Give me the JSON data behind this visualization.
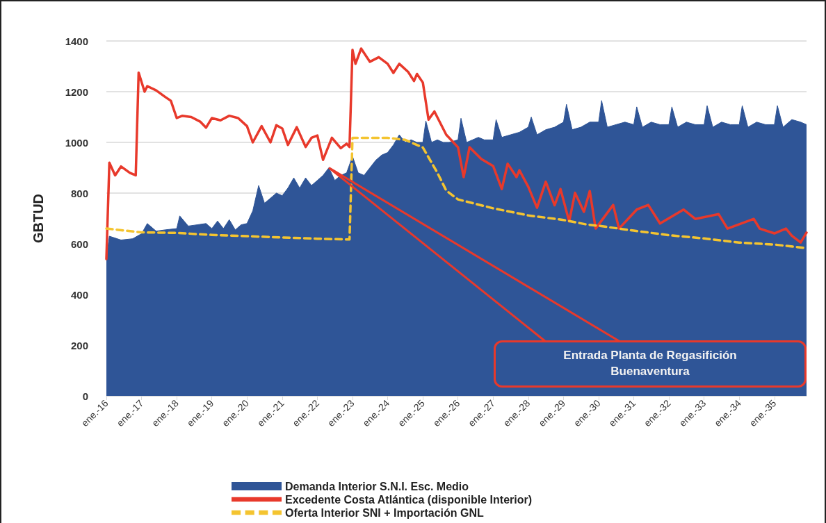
{
  "chart_data": {
    "type": "line",
    "ylabel": "GBTUD",
    "xlim": [
      "2016-01",
      "2035-12"
    ],
    "xticks": [
      {
        "value": "2016-01",
        "label": "ene.-16"
      },
      {
        "value": "2017-01",
        "label": "ene.-17"
      },
      {
        "value": "2018-01",
        "label": "ene.-18"
      },
      {
        "value": "2019-01",
        "label": "ene.-19"
      },
      {
        "value": "2020-01",
        "label": "ene.-20"
      },
      {
        "value": "2021-01",
        "label": "ene.-21"
      },
      {
        "value": "2022-01",
        "label": "ene.-22"
      },
      {
        "value": "2023-01",
        "label": "ene.-23"
      },
      {
        "value": "2024-01",
        "label": "ene.-24"
      },
      {
        "value": "2025-01",
        "label": "ene.-25"
      },
      {
        "value": "2026-01",
        "label": "ene.-26"
      },
      {
        "value": "2027-01",
        "label": "ene.-27"
      },
      {
        "value": "2028-01",
        "label": "ene.-28"
      },
      {
        "value": "2029-01",
        "label": "ene.-29"
      },
      {
        "value": "2030-01",
        "label": "ene.-30"
      },
      {
        "value": "2031-01",
        "label": "ene.-31"
      },
      {
        "value": "2032-01",
        "label": "ene.-32"
      },
      {
        "value": "2033-01",
        "label": "ene.-33"
      },
      {
        "value": "2034-01",
        "label": "ene.-34"
      },
      {
        "value": "2035-01",
        "label": "ene.-35"
      }
    ],
    "ylim": [
      0,
      1400
    ],
    "yticks": [
      0,
      200,
      400,
      600,
      800,
      1000,
      1200,
      1400
    ],
    "grid": "y",
    "legend": "bottom",
    "marker": "none",
    "series": [
      {
        "name": "Demanda Interior S.N.I. Esc. Medio",
        "type": "area",
        "color": "#2f5597",
        "x": [
          "2016-01",
          "2016-02",
          "2016-06",
          "2016-10",
          "2017-01",
          "2017-03",
          "2017-06",
          "2017-09",
          "2018-01",
          "2018-02",
          "2018-05",
          "2018-08",
          "2018-11",
          "2019-01",
          "2019-03",
          "2019-05",
          "2019-07",
          "2019-09",
          "2019-11",
          "2020-01",
          "2020-03",
          "2020-05",
          "2020-07",
          "2020-09",
          "2020-11",
          "2021-01",
          "2021-03",
          "2021-05",
          "2021-07",
          "2021-09",
          "2021-11",
          "2022-01",
          "2022-03",
          "2022-05",
          "2022-07",
          "2022-09",
          "2022-11",
          "2023-01",
          "2023-03",
          "2023-05",
          "2023-07",
          "2023-09",
          "2023-11",
          "2024-01",
          "2024-03",
          "2024-05",
          "2024-07",
          "2024-09",
          "2024-11",
          "2025-01",
          "2025-02",
          "2025-04",
          "2025-06",
          "2025-08",
          "2025-10",
          "2026-01",
          "2026-02",
          "2026-04",
          "2026-06",
          "2026-08",
          "2026-10",
          "2027-01",
          "2027-02",
          "2027-04",
          "2027-07",
          "2027-10",
          "2028-01",
          "2028-02",
          "2028-04",
          "2028-07",
          "2028-10",
          "2029-01",
          "2029-02",
          "2029-04",
          "2029-07",
          "2029-10",
          "2030-01",
          "2030-02",
          "2030-04",
          "2030-07",
          "2030-10",
          "2031-01",
          "2031-02",
          "2031-04",
          "2031-07",
          "2031-10",
          "2032-01",
          "2032-02",
          "2032-04",
          "2032-07",
          "2032-10",
          "2033-01",
          "2033-02",
          "2033-04",
          "2033-07",
          "2033-10",
          "2034-01",
          "2034-02",
          "2034-04",
          "2034-07",
          "2034-10",
          "2035-01",
          "2035-02",
          "2035-04",
          "2035-07",
          "2035-10",
          "2035-12"
        ],
        "values": [
          540,
          630,
          615,
          620,
          640,
          680,
          650,
          655,
          660,
          710,
          670,
          675,
          680,
          660,
          690,
          660,
          695,
          655,
          675,
          680,
          730,
          830,
          760,
          780,
          800,
          790,
          820,
          860,
          820,
          860,
          830,
          850,
          870,
          900,
          850,
          870,
          880,
          945,
          880,
          870,
          900,
          930,
          950,
          960,
          990,
          1030,
          1000,
          1010,
          1000,
          1000,
          1085,
          1000,
          1010,
          1000,
          1000,
          1010,
          1095,
          1000,
          1010,
          1020,
          1010,
          1010,
          1090,
          1020,
          1030,
          1040,
          1060,
          1100,
          1030,
          1050,
          1060,
          1080,
          1150,
          1050,
          1060,
          1080,
          1080,
          1165,
          1060,
          1070,
          1080,
          1070,
          1140,
          1060,
          1080,
          1070,
          1070,
          1140,
          1060,
          1080,
          1070,
          1070,
          1145,
          1060,
          1080,
          1070,
          1070,
          1145,
          1060,
          1080,
          1070,
          1070,
          1145,
          1060,
          1090,
          1080,
          1070
        ]
      },
      {
        "name": "Excedente Costa Atlántica (disponible Interior)",
        "type": "line",
        "color": "#e8392b",
        "line_style": "solid",
        "x": [
          "2016-01",
          "2016-02",
          "2016-04",
          "2016-06",
          "2016-09",
          "2016-11",
          "2016-12",
          "2017-02",
          "2017-03",
          "2017-06",
          "2017-09",
          "2017-11",
          "2018-01",
          "2018-03",
          "2018-06",
          "2018-09",
          "2018-11",
          "2019-01",
          "2019-04",
          "2019-07",
          "2019-10",
          "2020-01",
          "2020-03",
          "2020-06",
          "2020-09",
          "2020-11",
          "2021-01",
          "2021-03",
          "2021-06",
          "2021-09",
          "2021-11",
          "2022-01",
          "2022-03",
          "2022-06",
          "2022-09",
          "2022-11",
          "2022-12",
          "2023-01",
          "2023-02",
          "2023-04",
          "2023-07",
          "2023-10",
          "2024-01",
          "2024-03",
          "2024-05",
          "2024-08",
          "2024-10",
          "2024-11",
          "2025-01",
          "2025-03",
          "2025-05",
          "2025-09",
          "2026-01",
          "2026-03",
          "2026-05",
          "2026-09",
          "2027-01",
          "2027-04",
          "2027-06",
          "2027-09",
          "2027-10",
          "2028-01",
          "2028-04",
          "2028-07",
          "2028-10",
          "2028-12",
          "2029-03",
          "2029-05",
          "2029-08",
          "2029-10",
          "2029-12",
          "2030-06",
          "2030-08",
          "2031-02",
          "2031-06",
          "2031-10",
          "2032-06",
          "2032-10",
          "2033-06",
          "2033-09",
          "2034-06",
          "2034-08",
          "2035-01",
          "2035-05",
          "2035-07",
          "2035-10",
          "2035-12"
        ],
        "values": [
          540,
          920,
          870,
          905,
          880,
          870,
          1275,
          1200,
          1222,
          1205,
          1180,
          1164,
          1096,
          1105,
          1100,
          1082,
          1058,
          1096,
          1087,
          1105,
          1096,
          1064,
          1000,
          1064,
          1000,
          1068,
          1055,
          990,
          1060,
          982,
          1018,
          1027,
          931,
          1018,
          977,
          995,
          982,
          1365,
          1310,
          1370,
          1318,
          1336,
          1310,
          1274,
          1310,
          1278,
          1242,
          1270,
          1236,
          1090,
          1122,
          1030,
          981,
          863,
          981,
          934,
          907,
          816,
          916,
          863,
          890,
          825,
          742,
          845,
          752,
          816,
          688,
          801,
          726,
          808,
          660,
          753,
          660,
          735,
          753,
          680,
          735,
          698,
          717,
          660,
          698,
          660,
          641,
          660,
          632,
          605,
          644
        ]
      },
      {
        "name": "Oferta Interior SNI + Importación GNL",
        "type": "line",
        "color": "#f4c430",
        "line_style": "dashed",
        "x": [
          "2016-01",
          "2017-01",
          "2018-01",
          "2019-01",
          "2020-01",
          "2021-01",
          "2022-01",
          "2022-12",
          "2023-01",
          "2024-01",
          "2024-07",
          "2025-01",
          "2025-06",
          "2025-09",
          "2026-01",
          "2027-01",
          "2028-01",
          "2029-01",
          "2029-09",
          "2030-01",
          "2031-01",
          "2032-01",
          "2033-01",
          "2034-01",
          "2035-01",
          "2035-12"
        ],
        "values": [
          660,
          645,
          643,
          635,
          630,
          625,
          620,
          617,
          1018,
          1018,
          1010,
          980,
          880,
          810,
          775,
          740,
          712,
          694,
          676,
          671,
          652,
          634,
          621,
          605,
          597,
          583
        ]
      }
    ],
    "annotations": [
      {
        "text": "Entrada Planta de Regasifición Buenaventura",
        "x": "2022-05",
        "y": 900
      }
    ]
  }
}
